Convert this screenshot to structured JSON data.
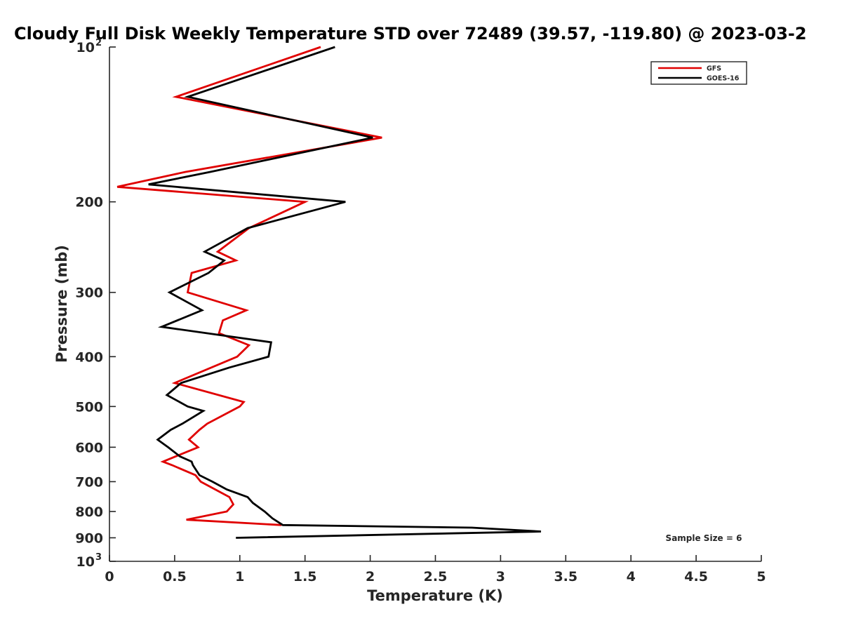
{
  "chart_data": {
    "type": "line",
    "title": "Cloudy Full Disk Weekly Temperature STD over 72489 (39.57, -119.80) @ 2023-03-2",
    "xlabel": "Temperature (K)",
    "ylabel": "Pressure (mb)",
    "xlim": [
      0,
      5
    ],
    "ylim": [
      100,
      1000
    ],
    "y_scale": "log",
    "y_reversed": true,
    "grid": false,
    "legend_position": "top-right",
    "x_ticks": [
      {
        "value": 0,
        "label": "0"
      },
      {
        "value": 0.5,
        "label": "0.5"
      },
      {
        "value": 1,
        "label": "1"
      },
      {
        "value": 1.5,
        "label": "1.5"
      },
      {
        "value": 2,
        "label": "2"
      },
      {
        "value": 2.5,
        "label": "2.5"
      },
      {
        "value": 3,
        "label": "3"
      },
      {
        "value": 3.5,
        "label": "3.5"
      },
      {
        "value": 4,
        "label": "4"
      },
      {
        "value": 4.5,
        "label": "4.5"
      },
      {
        "value": 5,
        "label": "5"
      }
    ],
    "y_ticks": [
      {
        "value": 100,
        "base": "10",
        "exp": "2"
      },
      {
        "value": 200,
        "base": "200",
        "exp": ""
      },
      {
        "value": 300,
        "base": "300",
        "exp": ""
      },
      {
        "value": 400,
        "base": "400",
        "exp": ""
      },
      {
        "value": 500,
        "base": "500",
        "exp": ""
      },
      {
        "value": 600,
        "base": "600",
        "exp": ""
      },
      {
        "value": 700,
        "base": "700",
        "exp": ""
      },
      {
        "value": 800,
        "base": "800",
        "exp": ""
      },
      {
        "value": 900,
        "base": "900",
        "exp": ""
      },
      {
        "value": 1000,
        "base": "10",
        "exp": "3"
      }
    ],
    "series": [
      {
        "name": "GFS",
        "color": "#e00000",
        "points": [
          [
            1.62,
            100
          ],
          [
            0.51,
            125
          ],
          [
            2.09,
            150
          ],
          [
            0.58,
            175
          ],
          [
            0.06,
            187
          ],
          [
            1.5,
            200
          ],
          [
            1.07,
            225
          ],
          [
            0.83,
            250
          ],
          [
            0.97,
            260
          ],
          [
            0.63,
            275
          ],
          [
            0.6,
            300
          ],
          [
            1.05,
            325
          ],
          [
            0.87,
            340
          ],
          [
            0.84,
            360
          ],
          [
            1.07,
            380
          ],
          [
            0.98,
            400
          ],
          [
            0.5,
            450
          ],
          [
            1.03,
            490
          ],
          [
            1.0,
            500
          ],
          [
            0.75,
            540
          ],
          [
            0.69,
            555
          ],
          [
            0.61,
            580
          ],
          [
            0.68,
            600
          ],
          [
            0.41,
            640
          ],
          [
            0.48,
            650
          ],
          [
            0.66,
            680
          ],
          [
            0.7,
            700
          ],
          [
            0.92,
            750
          ],
          [
            0.95,
            775
          ],
          [
            0.9,
            800
          ],
          [
            0.59,
            830
          ],
          [
            1.32,
            850
          ]
        ]
      },
      {
        "name": "GOES-16",
        "color": "#000000",
        "points": [
          [
            1.73,
            100
          ],
          [
            0.6,
            125
          ],
          [
            2.02,
            150
          ],
          [
            0.77,
            175
          ],
          [
            0.3,
            185
          ],
          [
            1.81,
            200
          ],
          [
            1.06,
            225
          ],
          [
            0.73,
            250
          ],
          [
            0.88,
            260
          ],
          [
            0.76,
            275
          ],
          [
            0.46,
            300
          ],
          [
            0.71,
            325
          ],
          [
            0.4,
            350
          ],
          [
            1.24,
            375
          ],
          [
            1.22,
            400
          ],
          [
            0.92,
            420
          ],
          [
            0.55,
            450
          ],
          [
            0.44,
            475
          ],
          [
            0.6,
            500
          ],
          [
            0.72,
            510
          ],
          [
            0.56,
            540
          ],
          [
            0.47,
            555
          ],
          [
            0.37,
            580
          ],
          [
            0.45,
            600
          ],
          [
            0.54,
            625
          ],
          [
            0.63,
            640
          ],
          [
            0.64,
            650
          ],
          [
            0.69,
            680
          ],
          [
            0.79,
            700
          ],
          [
            0.9,
            725
          ],
          [
            1.06,
            750
          ],
          [
            1.1,
            770
          ],
          [
            1.19,
            800
          ],
          [
            1.25,
            825
          ],
          [
            1.33,
            850
          ],
          [
            2.78,
            860
          ],
          [
            3.31,
            875
          ],
          [
            0.97,
            900
          ]
        ]
      }
    ],
    "annotations": [
      {
        "text": "Sample Size = 6"
      }
    ]
  }
}
